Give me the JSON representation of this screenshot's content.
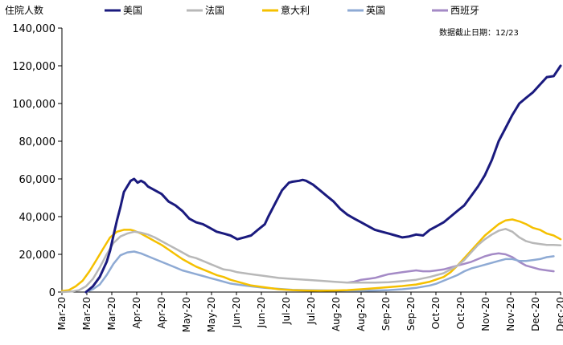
{
  "chart_data": {
    "type": "line",
    "ylabel": "住院人数",
    "note": "数据截止日期：12/23",
    "ylim": [
      0,
      140000
    ],
    "yticks": [
      "0",
      "20,000",
      "40,000",
      "60,000",
      "80,000",
      "100,000",
      "120,000",
      "140,000"
    ],
    "ytick_values": [
      0,
      20000,
      40000,
      60000,
      80000,
      100000,
      120000,
      140000
    ],
    "x_range": [
      0,
      290
    ],
    "x_unit": "days since 2020-03-01",
    "xticks": [
      "Mar-20",
      "Mar-20",
      "Mar-20",
      "Apr-20",
      "Apr-20",
      "May-20",
      "May-20",
      "Jun-20",
      "Jun-20",
      "Jul-20",
      "Jul-20",
      "Aug-20",
      "Aug-20",
      "Sep-20",
      "Sep-20",
      "Oct-20",
      "Oct-20",
      "Nov-20",
      "Nov-20",
      "Dec-20",
      "Dec-20"
    ],
    "series": [
      {
        "name": "美国",
        "color": "#1a1a7e",
        "x": [
          14,
          18,
          22,
          26,
          28,
          30,
          32,
          34,
          36,
          38,
          40,
          42,
          44,
          46,
          48,
          50,
          54,
          58,
          62,
          66,
          70,
          74,
          78,
          82,
          86,
          90,
          94,
          98,
          102,
          106,
          110,
          114,
          118,
          120,
          124,
          128,
          132,
          134,
          138,
          140,
          142,
          146,
          150,
          154,
          158,
          162,
          166,
          170,
          174,
          178,
          182,
          186,
          190,
          194,
          198,
          202,
          206,
          210,
          214,
          218,
          222,
          226,
          230,
          234,
          238,
          242,
          246,
          250,
          254,
          258,
          262,
          266,
          270,
          274,
          278,
          282,
          286,
          290
        ],
        "values": [
          0,
          3000,
          8000,
          16000,
          22000,
          30000,
          38000,
          45000,
          53000,
          56000,
          59000,
          60000,
          58000,
          59000,
          58000,
          56000,
          54000,
          52000,
          48000,
          46000,
          43000,
          39000,
          37000,
          36000,
          34000,
          32000,
          31000,
          30000,
          28000,
          29000,
          30000,
          33000,
          36000,
          40000,
          47000,
          54000,
          58000,
          58500,
          59000,
          59500,
          59000,
          57000,
          54000,
          51000,
          48000,
          44000,
          41000,
          39000,
          37000,
          35000,
          33000,
          32000,
          31000,
          30000,
          29000,
          29500,
          30500,
          30000,
          33000,
          35000,
          37000,
          40000,
          43000,
          46000,
          51000,
          56000,
          62000,
          70000,
          80000,
          87000,
          94000,
          100000,
          103000,
          106000,
          110000,
          114000,
          114500,
          120000
        ]
      },
      {
        "name": "法国",
        "color": "#b8b8b8",
        "x": [
          0,
          6,
          10,
          14,
          18,
          22,
          26,
          30,
          34,
          38,
          42,
          46,
          50,
          54,
          58,
          62,
          66,
          70,
          74,
          78,
          82,
          86,
          90,
          94,
          98,
          102,
          110,
          118,
          126,
          134,
          142,
          150,
          158,
          166,
          174,
          182,
          190,
          198,
          206,
          214,
          222,
          230,
          234,
          238,
          242,
          246,
          250,
          254,
          258,
          262,
          266,
          270,
          274,
          278,
          282,
          286,
          290
        ],
        "values": [
          0,
          300,
          1000,
          3000,
          7000,
          13000,
          20000,
          26000,
          29500,
          31000,
          32000,
          31500,
          30500,
          29000,
          27000,
          25000,
          23000,
          21000,
          19000,
          18000,
          16500,
          15000,
          13500,
          12000,
          11500,
          10500,
          9500,
          8500,
          7500,
          7000,
          6500,
          6000,
          5500,
          5000,
          5000,
          5000,
          5200,
          5800,
          6500,
          8000,
          10000,
          14000,
          17000,
          21000,
          25000,
          28000,
          30500,
          32500,
          33500,
          32000,
          29000,
          27000,
          26000,
          25500,
          25000,
          25000,
          24800
        ]
      },
      {
        "name": "意大利",
        "color": "#f5c000",
        "x": [
          0,
          4,
          8,
          12,
          16,
          20,
          24,
          28,
          32,
          36,
          40,
          42,
          46,
          50,
          54,
          58,
          62,
          66,
          70,
          74,
          78,
          82,
          86,
          90,
          94,
          98,
          102,
          106,
          110,
          118,
          126,
          134,
          142,
          150,
          158,
          166,
          174,
          182,
          190,
          198,
          206,
          214,
          222,
          226,
          230,
          234,
          238,
          242,
          246,
          250,
          254,
          258,
          262,
          266,
          270,
          274,
          278,
          282,
          286,
          290
        ],
        "values": [
          500,
          1000,
          3000,
          6000,
          11000,
          17000,
          23000,
          29000,
          32000,
          33000,
          33000,
          32500,
          31000,
          29000,
          27000,
          25000,
          22500,
          20000,
          17500,
          15500,
          13500,
          12000,
          10500,
          9000,
          8000,
          6500,
          5500,
          4500,
          3500,
          2500,
          1500,
          1000,
          800,
          700,
          800,
          1000,
          1500,
          2000,
          2600,
          3200,
          4000,
          5500,
          8000,
          10500,
          14000,
          18000,
          22000,
          26000,
          30000,
          33000,
          36000,
          38000,
          38500,
          37500,
          36000,
          34000,
          33000,
          31000,
          30000,
          28000
        ]
      },
      {
        "name": "英国",
        "color": "#8eaad4",
        "x": [
          14,
          18,
          22,
          26,
          30,
          34,
          38,
          42,
          46,
          50,
          54,
          58,
          62,
          66,
          70,
          74,
          78,
          82,
          86,
          90,
          94,
          98,
          102,
          110,
          118,
          126,
          134,
          142,
          150,
          158,
          166,
          174,
          182,
          190,
          198,
          206,
          214,
          218,
          222,
          226,
          230,
          234,
          238,
          242,
          246,
          250,
          254,
          258,
          262,
          266,
          270,
          274,
          278,
          282,
          286
        ],
        "values": [
          0,
          1500,
          4000,
          9000,
          15000,
          19500,
          21000,
          21500,
          20500,
          19000,
          17500,
          16000,
          14500,
          13000,
          11500,
          10500,
          9500,
          8500,
          7500,
          6500,
          5500,
          4500,
          4000,
          3000,
          2200,
          1700,
          1200,
          1000,
          900,
          800,
          700,
          700,
          800,
          1000,
          1500,
          2200,
          3500,
          4500,
          6000,
          7500,
          9000,
          11000,
          12500,
          13500,
          14500,
          15500,
          16500,
          17500,
          17500,
          16500,
          16500,
          17000,
          17500,
          18500,
          19000
        ]
      },
      {
        "name": "西班牙",
        "color": "#a48ac6",
        "x": [
          166,
          170,
          174,
          178,
          182,
          186,
          190,
          194,
          198,
          202,
          206,
          210,
          214,
          218,
          222,
          226,
          230,
          234,
          238,
          242,
          246,
          250,
          254,
          258,
          262,
          266,
          270,
          274,
          278,
          282,
          286
        ],
        "values": [
          5000,
          5500,
          6500,
          7000,
          7500,
          8500,
          9500,
          10000,
          10500,
          11000,
          11500,
          11000,
          11000,
          11500,
          12000,
          13000,
          14000,
          15000,
          16000,
          17500,
          19000,
          20000,
          20500,
          20000,
          18500,
          16000,
          14000,
          13000,
          12000,
          11500,
          11000
        ]
      }
    ]
  }
}
